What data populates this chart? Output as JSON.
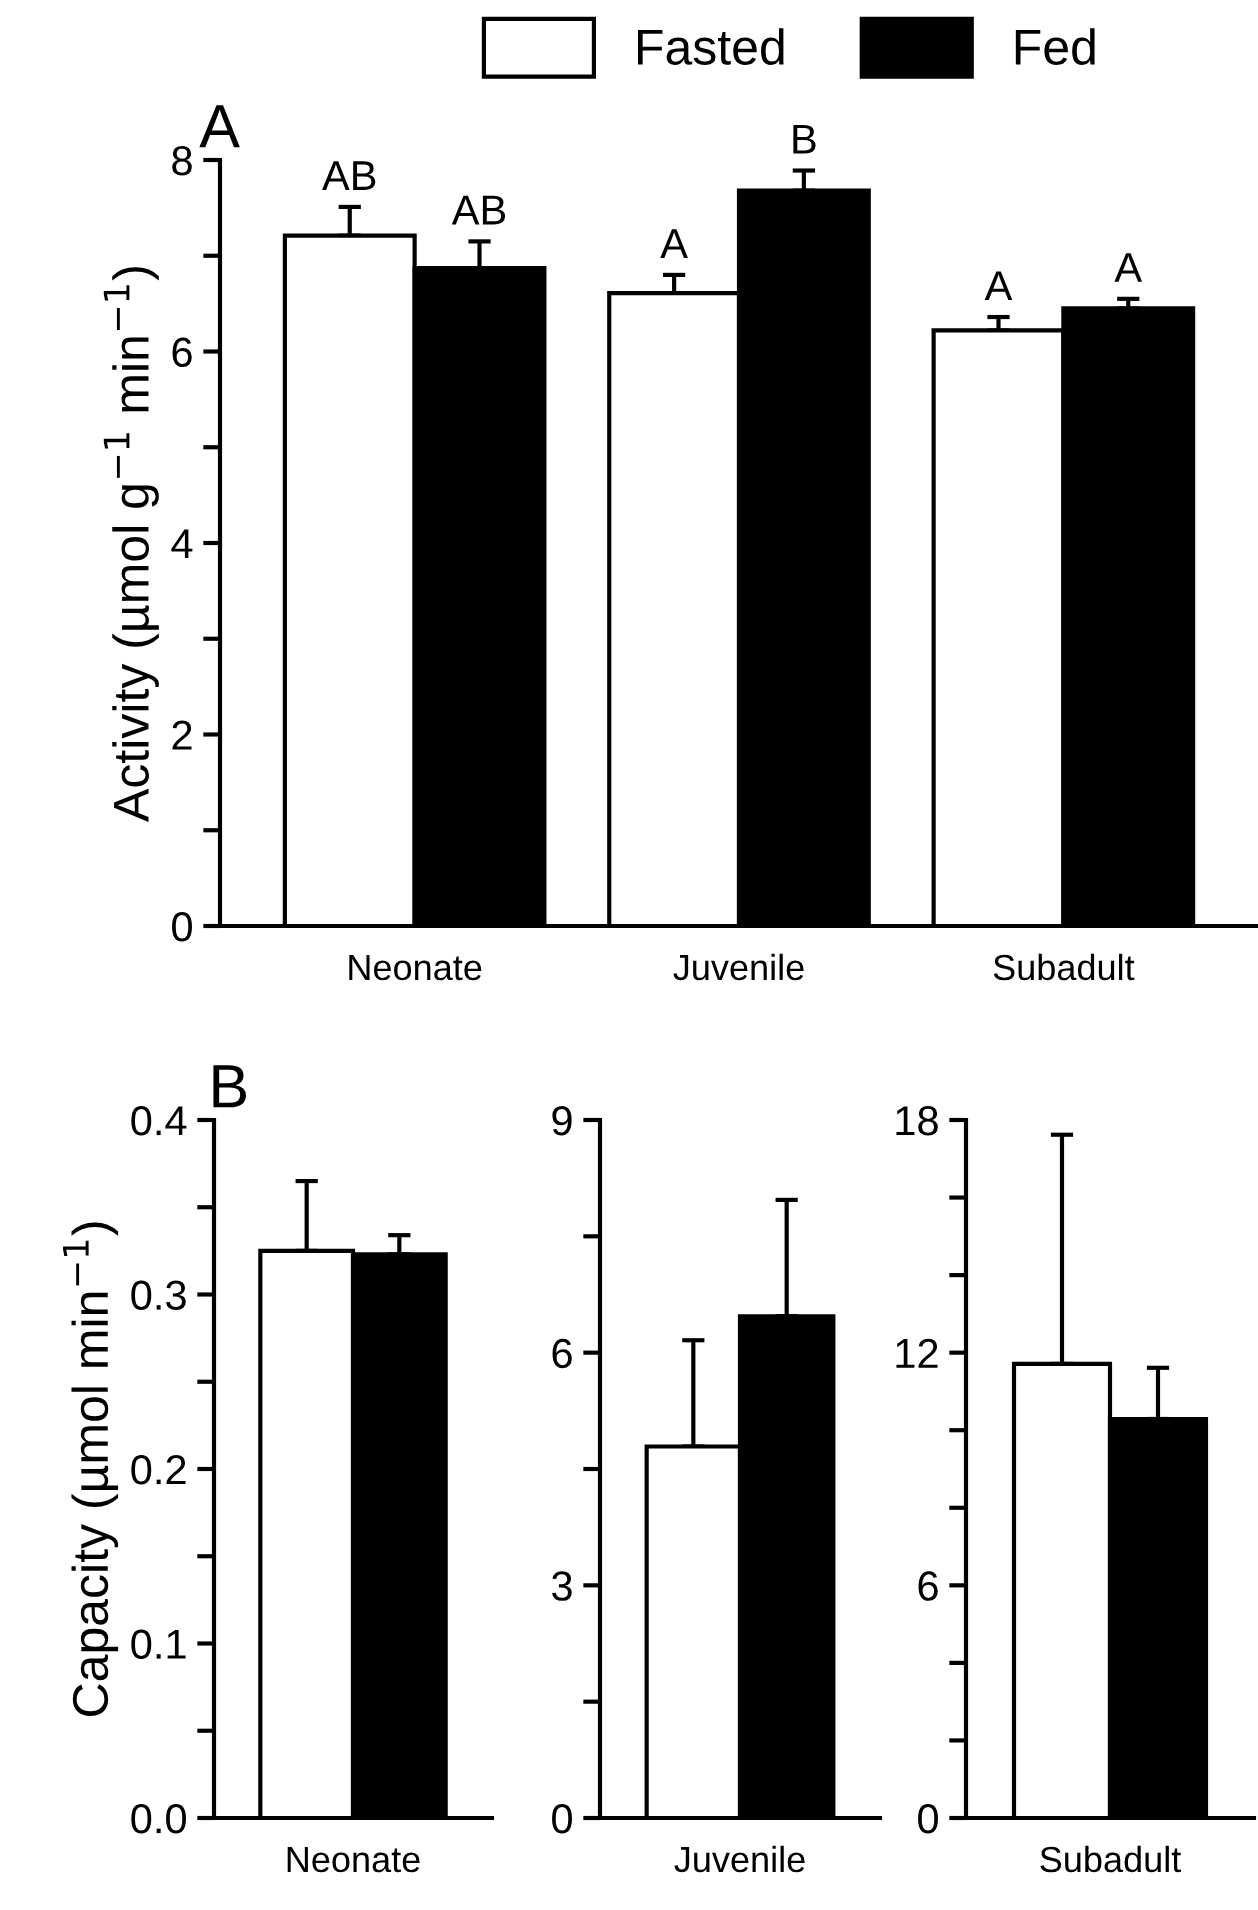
{
  "chart_data": [
    {
      "type": "bar",
      "ylabel": "Activity (µmol g$^{−1}$ min$^{−1}$)",
      "categories": [
        "Neonate",
        "Juvenile",
        "Subadult"
      ],
      "series": [
        {
          "name": "Fasted",
          "color": "#ffffff",
          "values": [
            7.21,
            6.61,
            6.22
          ],
          "errors": [
            0.3,
            0.19,
            0.14
          ],
          "value_labels": [
            "AB",
            "A",
            "A"
          ]
        },
        {
          "name": "Fed",
          "color": "#000000",
          "values": [
            6.87,
            7.68,
            6.45
          ],
          "errors": [
            0.28,
            0.21,
            0.1
          ],
          "value_labels": [
            "AB",
            "B",
            "A"
          ]
        }
      ],
      "ylim": [
        0,
        8
      ],
      "yticks": [
        0,
        {
          "value": 1,
          "label": null
        },
        2,
        {
          "value": 3,
          "label": null
        },
        4,
        {
          "value": 5,
          "label": null
        },
        6,
        {
          "value": 7,
          "label": null
        },
        8
      ],
      "legend": "top",
      "grid": false,
      "annotations": [
        "A"
      ]
    },
    {
      "type": "bar",
      "ylabel": "Capacity (µmol min$^{−1}$)",
      "categories": [
        "Neonate"
      ],
      "series": [
        {
          "color": "#ffffff",
          "values": [
            0.325
          ],
          "errors": [
            0.04
          ]
        },
        {
          "color": "#000000",
          "values": [
            0.323
          ],
          "errors": [
            0.011
          ]
        }
      ],
      "ylim": [
        0,
        0.4
      ],
      "yticks": [
        {
          "value": 0,
          "label": "0.0"
        },
        {
          "value": 0.05,
          "label": null
        },
        0.1,
        {
          "value": 0.15,
          "label": null
        },
        0.2,
        {
          "value": 0.25,
          "label": null
        },
        0.3,
        {
          "value": 0.35,
          "label": null
        },
        0.4
      ],
      "grid": false,
      "annotations": [
        "B"
      ]
    },
    {
      "type": "bar",
      "categories": [
        "Juvenile"
      ],
      "series": [
        {
          "color": "#ffffff",
          "values": [
            4.79
          ],
          "errors": [
            1.37
          ]
        },
        {
          "color": "#000000",
          "values": [
            6.47
          ],
          "errors": [
            1.5
          ]
        }
      ],
      "ylim": [
        0,
        9
      ],
      "yticks": [
        0,
        {
          "value": 1.5,
          "label": null
        },
        3,
        {
          "value": 4.5,
          "label": null
        },
        6,
        {
          "value": 7.5,
          "label": null
        },
        9
      ],
      "grid": false
    },
    {
      "type": "bar",
      "categories": [
        "Subadult"
      ],
      "series": [
        {
          "color": "#ffffff",
          "values": [
            11.71
          ],
          "errors": [
            5.91
          ]
        },
        {
          "color": "#000000",
          "values": [
            10.29
          ],
          "errors": [
            1.32
          ]
        }
      ],
      "ylim": [
        0,
        18
      ],
      "yticks": [
        0,
        {
          "value": 2,
          "label": null
        },
        {
          "value": 4,
          "label": null
        },
        6,
        {
          "value": 8,
          "label": null
        },
        {
          "value": 10,
          "label": null
        },
        12,
        {
          "value": 14,
          "label": null
        },
        {
          "value": 16,
          "label": null
        },
        18
      ],
      "grid": false
    }
  ]
}
